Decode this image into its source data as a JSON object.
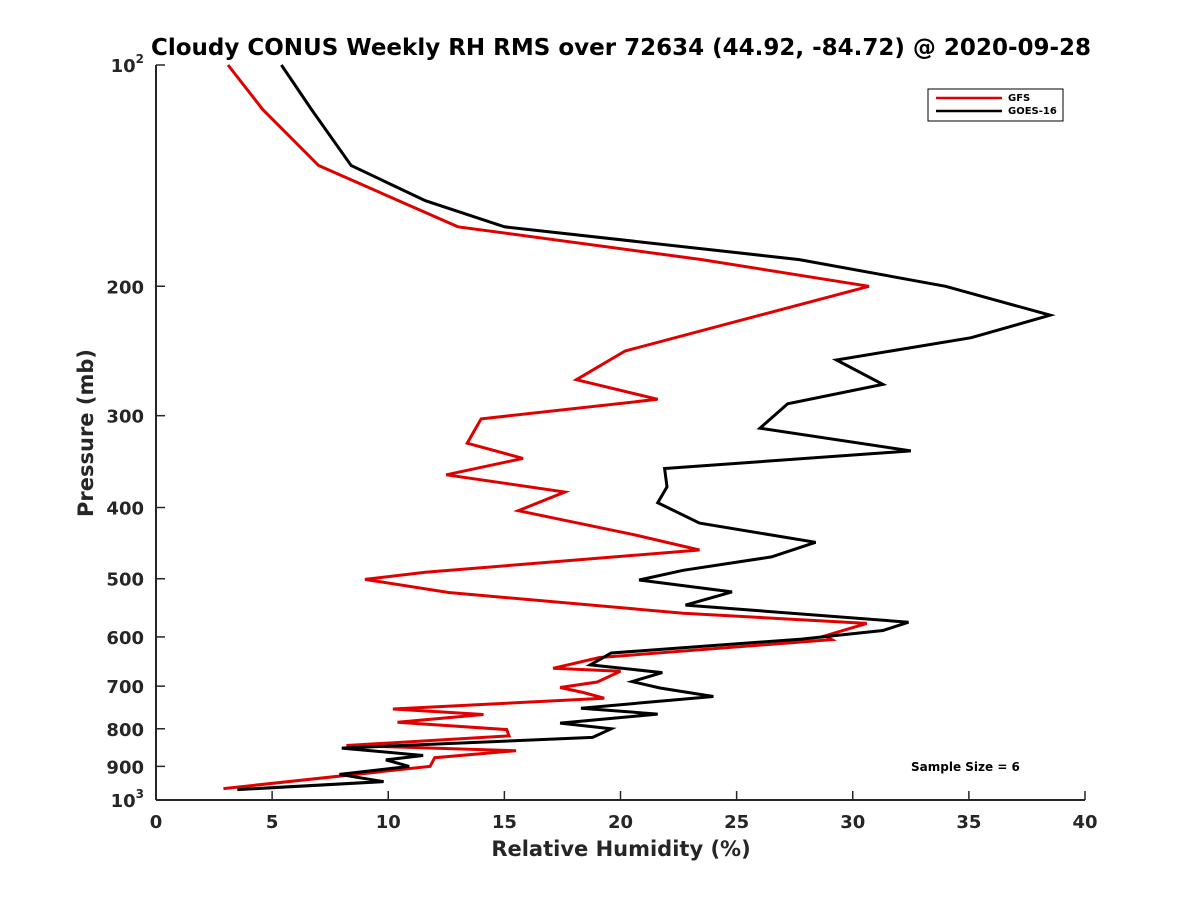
{
  "chart_data": {
    "type": "line",
    "title": "Cloudy CONUS Weekly RH RMS over 72634 (44.92, -84.72) @ 2020-09-28",
    "xlabel": "Relative Humidity (%)",
    "ylabel": "Pressure (mb)",
    "xlim": [
      0,
      40
    ],
    "ylim": [
      100,
      1000
    ],
    "y_scale": "log",
    "y_reversed": true,
    "grid": false,
    "legend_position": "top-right",
    "x_ticks": [
      0,
      5,
      10,
      15,
      20,
      25,
      30,
      35,
      40
    ],
    "x_tick_labels": [
      "0",
      "5",
      "10",
      "15",
      "20",
      "25",
      "30",
      "35",
      "40"
    ],
    "y_ticks": [
      {
        "value": 100,
        "base": "10",
        "exp": "2"
      },
      {
        "value": 200,
        "base": "200",
        "exp": ""
      },
      {
        "value": 300,
        "base": "300",
        "exp": ""
      },
      {
        "value": 400,
        "base": "400",
        "exp": ""
      },
      {
        "value": 500,
        "base": "500",
        "exp": ""
      },
      {
        "value": 600,
        "base": "600",
        "exp": ""
      },
      {
        "value": 700,
        "base": "700",
        "exp": ""
      },
      {
        "value": 800,
        "base": "800",
        "exp": ""
      },
      {
        "value": 900,
        "base": "900",
        "exp": ""
      },
      {
        "value": 1000,
        "base": "10",
        "exp": "3"
      }
    ],
    "series": [
      {
        "name": "GFS",
        "color": "#e00000",
        "points": [
          [
            3.1,
            100
          ],
          [
            4.6,
            115
          ],
          [
            7.0,
            137
          ],
          [
            13.0,
            166
          ],
          [
            23.5,
            184
          ],
          [
            30.7,
            200
          ],
          [
            26.0,
            219
          ],
          [
            20.2,
            245
          ],
          [
            18.1,
            268
          ],
          [
            21.6,
            285
          ],
          [
            14.0,
            303
          ],
          [
            13.4,
            327
          ],
          [
            15.8,
            343
          ],
          [
            12.5,
            361
          ],
          [
            17.6,
            381
          ],
          [
            15.6,
            404
          ],
          [
            20.5,
            435
          ],
          [
            23.4,
            457
          ],
          [
            16.5,
            476
          ],
          [
            11.6,
            490
          ],
          [
            9.0,
            501
          ],
          [
            12.6,
            522
          ],
          [
            22.7,
            557
          ],
          [
            30.6,
            575
          ],
          [
            28.8,
            598
          ],
          [
            29.1,
            605
          ],
          [
            19.1,
            640
          ],
          [
            17.1,
            662
          ],
          [
            20.0,
            668
          ],
          [
            19.0,
            691
          ],
          [
            17.4,
            703
          ],
          [
            18.4,
            714
          ],
          [
            19.3,
            727
          ],
          [
            10.2,
            752
          ],
          [
            14.1,
            765
          ],
          [
            10.4,
            784
          ],
          [
            15.1,
            802
          ],
          [
            15.2,
            818
          ],
          [
            8.2,
            843
          ],
          [
            15.5,
            857
          ],
          [
            12.0,
            876
          ],
          [
            11.8,
            900
          ],
          [
            2.9,
            965
          ]
        ]
      },
      {
        "name": "GOES-16",
        "color": "#000000",
        "points": [
          [
            5.4,
            100
          ],
          [
            6.7,
            115
          ],
          [
            8.4,
            137
          ],
          [
            11.6,
            153
          ],
          [
            15.0,
            166
          ],
          [
            27.7,
            184
          ],
          [
            34.0,
            200
          ],
          [
            38.5,
            219
          ],
          [
            35.1,
            235
          ],
          [
            29.3,
            252
          ],
          [
            31.3,
            272
          ],
          [
            27.2,
            289
          ],
          [
            26.0,
            312
          ],
          [
            32.5,
            335
          ],
          [
            21.9,
            354
          ],
          [
            22.0,
            375
          ],
          [
            21.6,
            394
          ],
          [
            23.4,
            420
          ],
          [
            28.4,
            446
          ],
          [
            26.5,
            467
          ],
          [
            22.7,
            487
          ],
          [
            20.8,
            502
          ],
          [
            24.8,
            521
          ],
          [
            22.8,
            543
          ],
          [
            32.4,
            573
          ],
          [
            31.3,
            588
          ],
          [
            27.8,
            604
          ],
          [
            19.6,
            631
          ],
          [
            18.7,
            655
          ],
          [
            21.8,
            671
          ],
          [
            20.5,
            690
          ],
          [
            21.7,
            704
          ],
          [
            24.0,
            723
          ],
          [
            18.3,
            750
          ],
          [
            21.6,
            764
          ],
          [
            17.4,
            786
          ],
          [
            19.6,
            800
          ],
          [
            18.8,
            822
          ],
          [
            8.0,
            850
          ],
          [
            11.5,
            870
          ],
          [
            9.9,
            882
          ],
          [
            10.9,
            900
          ],
          [
            7.9,
            923
          ],
          [
            9.8,
            944
          ],
          [
            3.5,
            968
          ]
        ]
      }
    ],
    "annotations": [
      {
        "text": "Sample Size = 6",
        "x": 33.0,
        "y": 900
      }
    ]
  }
}
